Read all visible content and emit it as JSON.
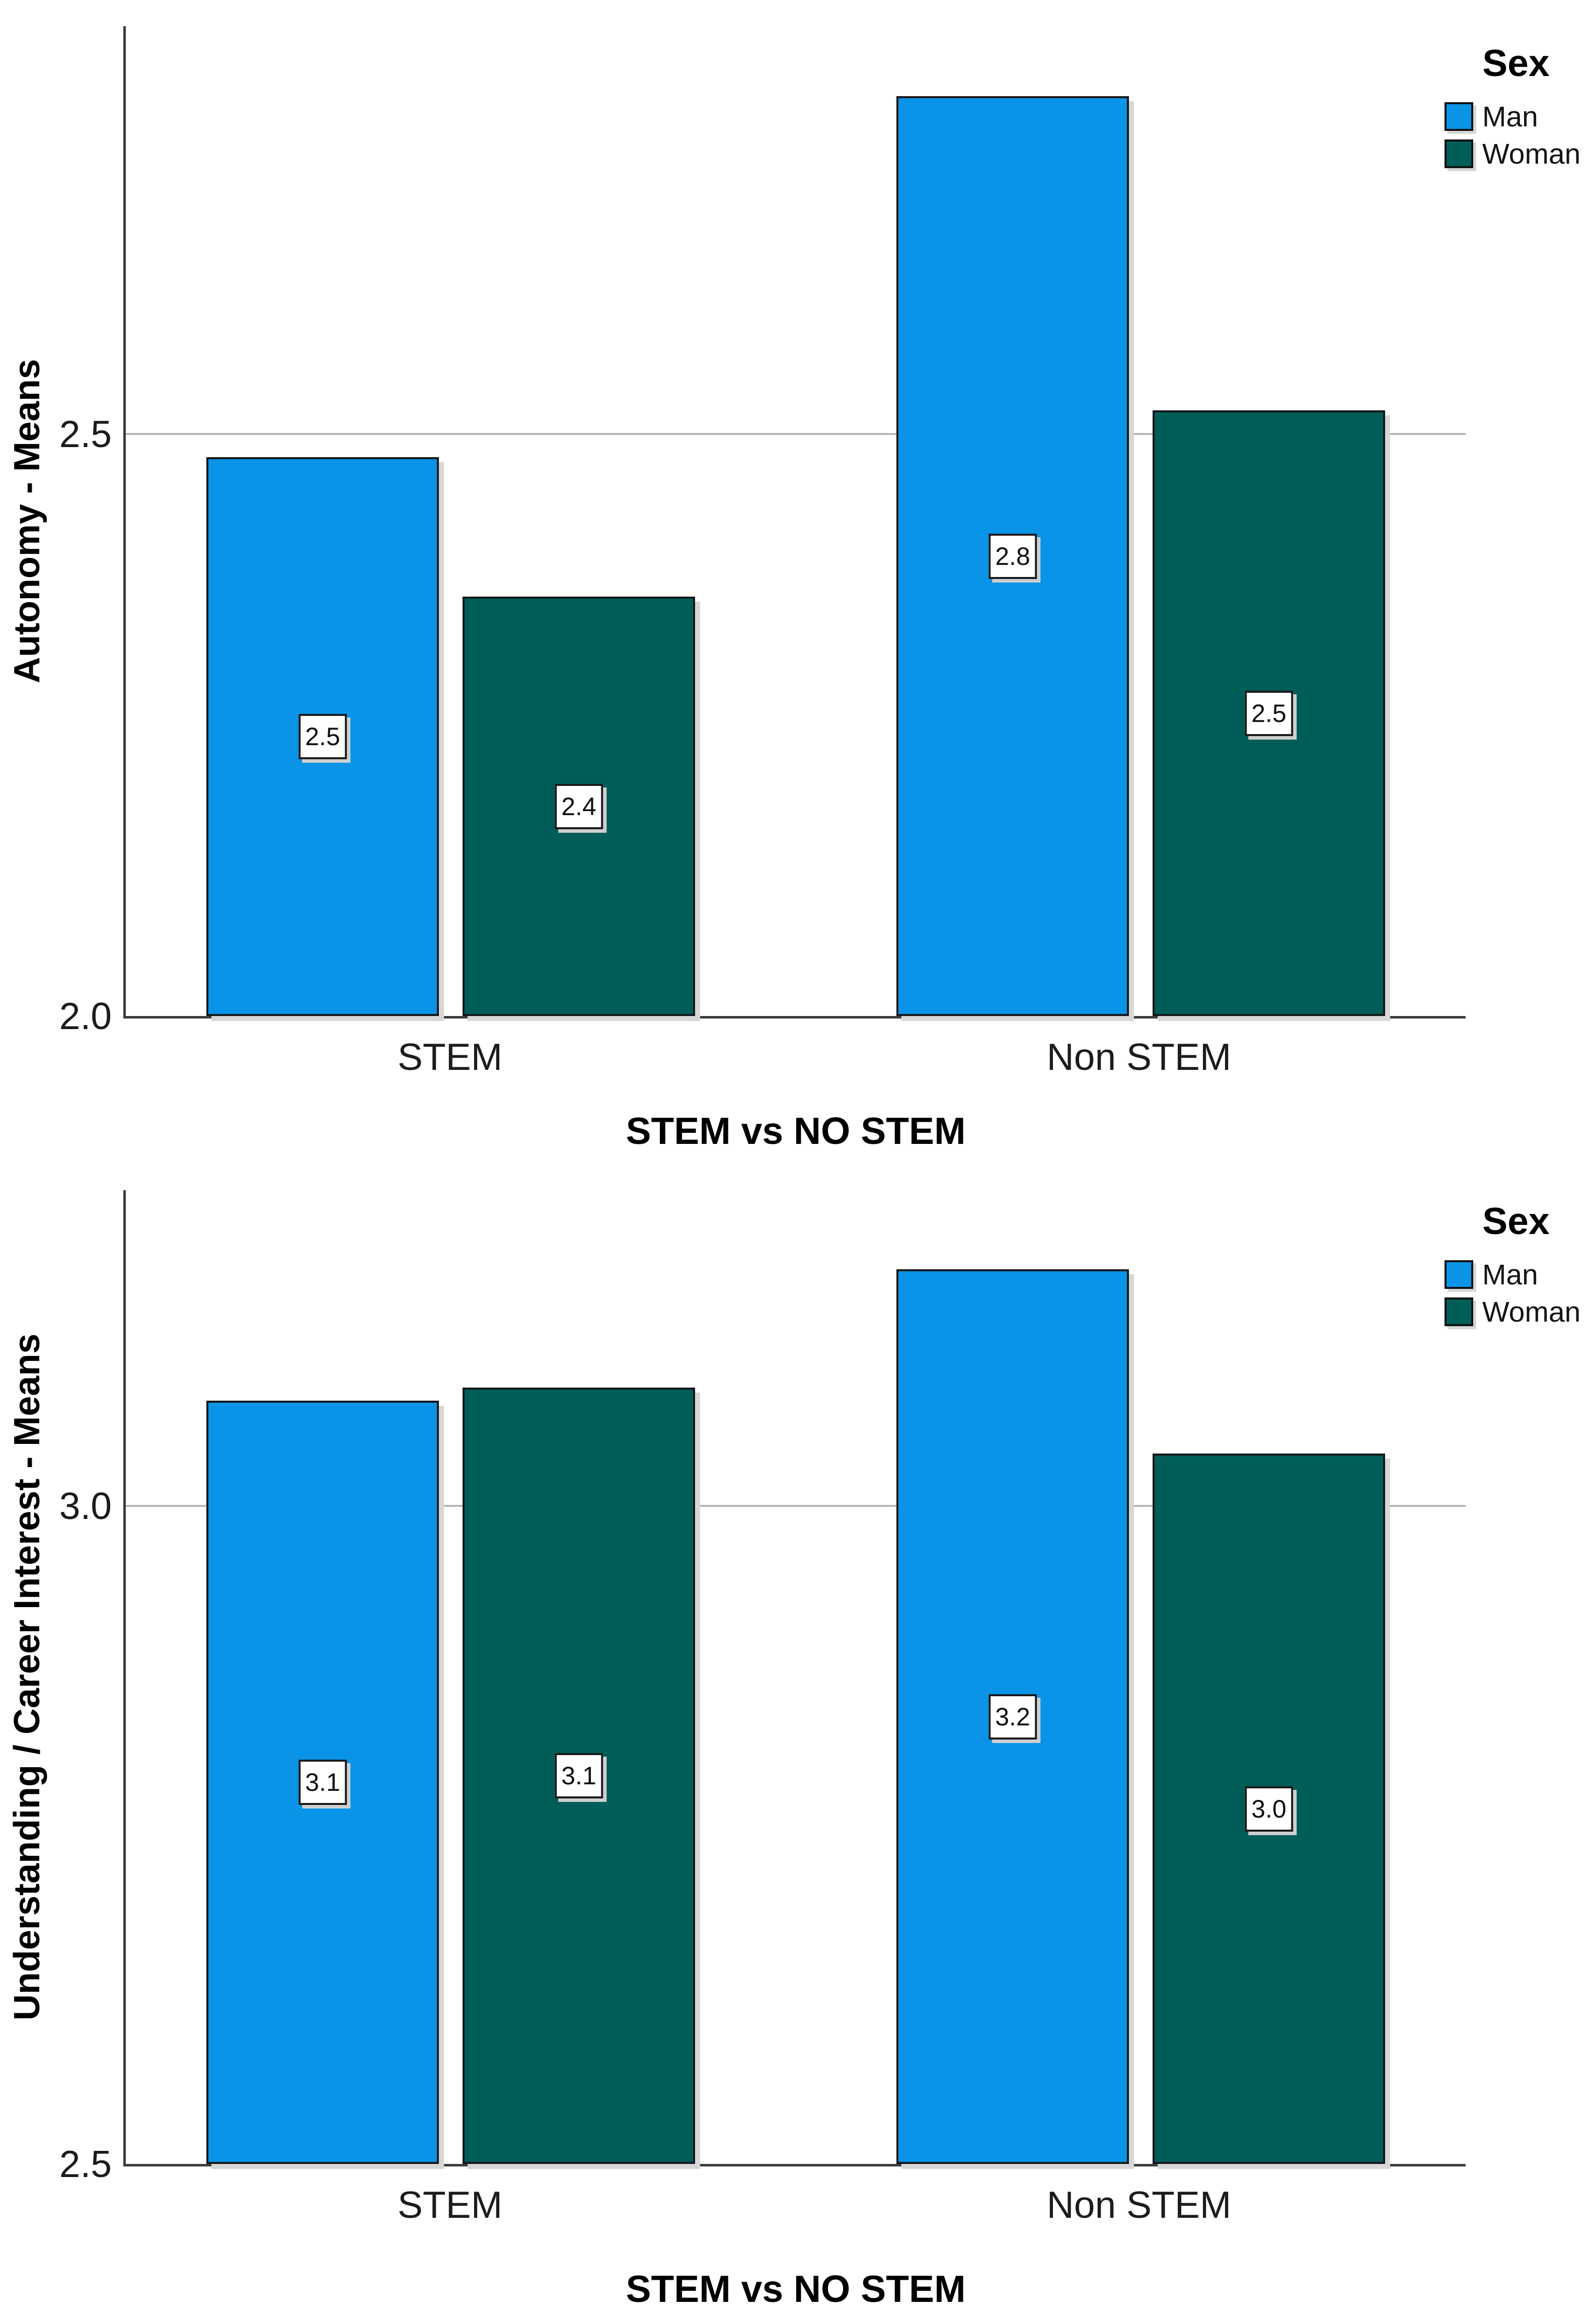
{
  "colors": {
    "man": "#0994E8",
    "woman": "#015D58",
    "bar_border": "#14171a",
    "gridline": "#b8b8b8",
    "axis_line": "#3d3d3d",
    "background": "#ffffff"
  },
  "legend": {
    "title": "Sex",
    "items": [
      {
        "label": "Man",
        "color": "#0994E8"
      },
      {
        "label": "Woman",
        "color": "#015D58"
      }
    ]
  },
  "chart_data": [
    {
      "type": "bar",
      "title": "",
      "xlabel": "STEM vs NO STEM",
      "ylabel": "Autonomy - Means",
      "categories": [
        "STEM",
        "Non STEM"
      ],
      "series": [
        {
          "name": "Man",
          "color": "#0994E8",
          "values": [
            2.48,
            2.79
          ],
          "bar_labels": [
            "2.5",
            "2.8"
          ]
        },
        {
          "name": "Woman",
          "color": "#015D58",
          "values": [
            2.36,
            2.52
          ],
          "bar_labels": [
            "2.4",
            "2.5"
          ]
        }
      ],
      "ylim": [
        2.0,
        2.85
      ],
      "yticks": [
        2.0,
        2.5
      ],
      "ytick_labels": [
        "2.0",
        "2.5"
      ],
      "gridlines": [
        2.5
      ],
      "grid": true,
      "legend_title": "Sex",
      "legend_position": "top-right"
    },
    {
      "type": "bar",
      "title": "",
      "xlabel": "STEM vs NO STEM",
      "ylabel": "Understanding / Career Interest - Means",
      "categories": [
        "STEM",
        "Non STEM"
      ],
      "series": [
        {
          "name": "Man",
          "color": "#0994E8",
          "values": [
            3.08,
            3.18
          ],
          "bar_labels": [
            "3.1",
            "3.2"
          ]
        },
        {
          "name": "Woman",
          "color": "#015D58",
          "values": [
            3.09,
            3.04
          ],
          "bar_labels": [
            "3.1",
            "3.0"
          ]
        }
      ],
      "ylim": [
        2.5,
        3.24
      ],
      "yticks": [
        2.5,
        3.0
      ],
      "ytick_labels": [
        "2.5",
        "3.0"
      ],
      "gridlines": [
        3.0
      ],
      "grid": true,
      "legend_title": "Sex",
      "legend_position": "top-right"
    }
  ]
}
